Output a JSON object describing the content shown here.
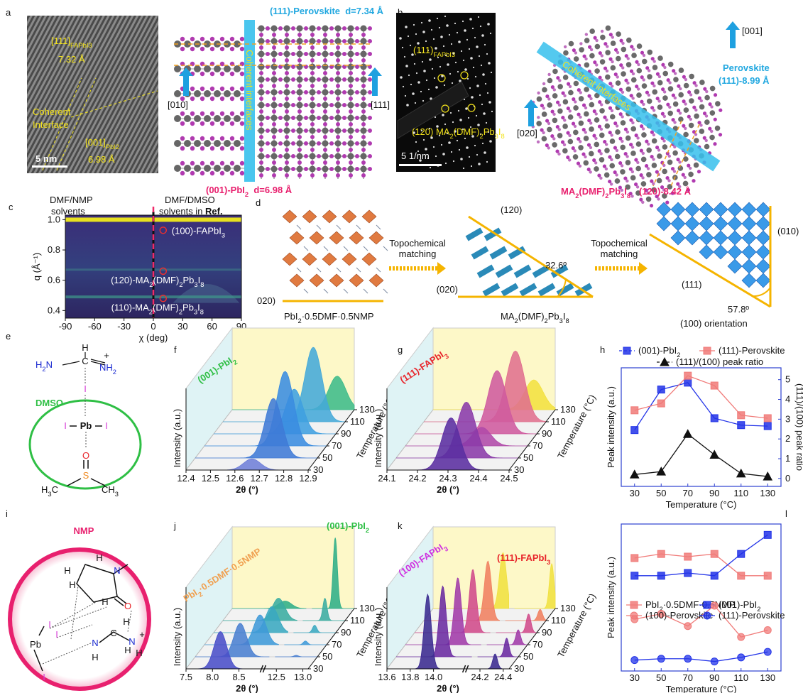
{
  "panel_a": {
    "letter": "a",
    "hrtem_top": [
      "[111]",
      "FAPbI3"
    ],
    "hrtem_top_d": "7.32 Å",
    "hrtem_interface_1": "Coherent",
    "hrtem_interface_2": "Interface",
    "hrtem_bottom": [
      "[001]",
      "PbI2"
    ],
    "hrtem_bottom_d": "6.98 Å",
    "hrtem_scale": "5 nm",
    "model_top": "(111)-Perovskite  d=7.34 Å",
    "model_left_axis": "[010]",
    "model_right_axis": "[111]",
    "model_band": "Coherent interfaces",
    "model_bottom": [
      "(001)-PbI",
      "2",
      "  d=6.98 Å"
    ]
  },
  "panel_b": {
    "letter": "b",
    "saed_spot_1": [
      "(111)",
      "FAPbI3"
    ],
    "saed_spot_2": [
      "(120) MA",
      "2",
      "(DMF)",
      "2",
      "Pb",
      "3",
      "I",
      "8"
    ],
    "saed_scale": "5 1/nm",
    "model_up_axis": "[001]",
    "model_perovskite_1": "Perovskite",
    "model_perovskite_2": "(111)-8.99 Å",
    "model_left_axis": "[020]",
    "model_band": "Coherent interfaces",
    "model_phase": [
      "MA",
      "2",
      "(DMF)",
      "2",
      "Pb",
      "3",
      "I",
      "8"
    ],
    "model_plane": "(120)-8.42 Å"
  },
  "panel_d": {
    "letter": "d",
    "left_plane": "020)",
    "left_phase": [
      "PbI",
      "2",
      "·0.5DMF·0.5NMP"
    ],
    "arrow_1_line_1": "Topochemical",
    "arrow_1_line_2": "matching",
    "mid_top": "(120)",
    "mid_left": "(020)",
    "mid_angle": "32.6º",
    "mid_phase": [
      "MA",
      "2",
      "(DMF)",
      "2",
      "Pb",
      "3",
      "I",
      "8"
    ],
    "arrow_2_line_1": "Topochemical",
    "arrow_2_line_2": "matching",
    "right_side": "(010)",
    "right_hyp": "(111)",
    "right_angle": "57.8º",
    "right_phase": "(100) orientation"
  },
  "panel_e": {
    "letter": "e",
    "atoms": [
      "H",
      "C",
      [
        "H",
        "2",
        "N"
      ],
      "+",
      [
        "NH",
        "2"
      ],
      "I",
      "DMSO",
      "I",
      "Pb",
      "I",
      "O",
      "S",
      [
        "H",
        "3",
        "C"
      ],
      [
        "CH",
        "3"
      ]
    ]
  },
  "panel_i": {
    "letter": "i",
    "atoms": [
      "NMP",
      "H",
      "N",
      "H",
      "H",
      "H",
      "O",
      "I",
      "I",
      "Pb",
      "I",
      "H",
      "N",
      "N",
      "H",
      "H",
      "+",
      "C",
      "H"
    ]
  },
  "chart_data": [
    {
      "letter": "c",
      "type": "heatmap",
      "header_left_1": "DMF/NMP",
      "header_left_2": "solvents",
      "header_right_1": "DMF/DMSO",
      "header_right_2": "solvents in ",
      "header_right_ref": "Ref.",
      "xlabel": "χ (deg)",
      "ylabel": "q (Å⁻¹)",
      "xlim": [
        -90,
        90
      ],
      "ylim": [
        0.35,
        1.03
      ],
      "xticks": [
        -90,
        -60,
        -30,
        0,
        30,
        60,
        90
      ],
      "yticks": [
        0.4,
        0.6,
        0.8,
        {
          "value": 1,
          "label": "1.0"
        }
      ],
      "annotations": [
        {
          "text": [
            "(100)-FAPbI",
            "3"
          ],
          "x": 10,
          "y": 0.93
        },
        {
          "text": [
            "(120)-MA",
            "2",
            "(DMF)",
            "2",
            "Pb",
            "3",
            "I",
            "8"
          ],
          "x": 10,
          "y": 0.66
        },
        {
          "text": [
            "(110)-MA",
            "2",
            "(DMF)",
            "2",
            "Pb",
            "3",
            "I",
            "8"
          ],
          "x": 10,
          "y": 0.48
        }
      ]
    },
    {
      "letter": "f",
      "type": "ridgeline",
      "annotations": [
        {
          "text": [
            "(001)-PbI",
            "2"
          ],
          "color": "#2fbf45"
        }
      ],
      "ylabel": "Intensity (a.u.)",
      "xlabel": "2θ (°)",
      "zlabel": "Temperature (°C)",
      "xlim": [
        12.4,
        12.9
      ],
      "xticks": [
        12.4,
        12.5,
        12.6,
        12.7,
        12.8,
        12.9
      ],
      "temperatures": [
        30,
        50,
        70,
        90,
        110,
        130
      ],
      "series": [
        {
          "centers": [
            12.67,
            12.72,
            12.73,
            12.73,
            12.77,
            12.83
          ],
          "heights": [
            0.15,
            0.8,
            1.0,
            0.6,
            1.0,
            0.45
          ],
          "colors": [
            "#6f7fd8",
            "#3f7ad6",
            "#3a8ce0",
            "#3f9fe0",
            "#44a8d8",
            "#3dbb8a"
          ]
        }
      ]
    },
    {
      "letter": "g",
      "type": "ridgeline",
      "annotations": [
        {
          "text": [
            "(111)-FAPbI",
            "3"
          ],
          "color": "#e8242a"
        }
      ],
      "ylabel": "Intensity (a.u.)",
      "xlabel": "2θ (°)",
      "zlabel": "Temperature (°C)",
      "xlim": [
        24.1,
        24.5
      ],
      "xticks": [
        24.1,
        24.2,
        24.3,
        24.4,
        24.5
      ],
      "temperatures": [
        30,
        50,
        70,
        90,
        110,
        130
      ],
      "series": [
        {
          "centers": [
            24.31,
            24.33,
            24.35,
            24.37,
            24.4,
            24.43
          ],
          "heights": [
            0.7,
            0.75,
            0.25,
            0.85,
            0.95,
            0.4
          ],
          "colors": [
            "#5a2ea0",
            "#8a3aa8",
            "#b04aa8",
            "#cf5a9e",
            "#e0708e",
            "#f2e040"
          ]
        }
      ]
    },
    {
      "letter": "h",
      "type": "line",
      "xlabel": "Temperature (°C)",
      "ylabel": "Peak intensity (a.u.)",
      "y2label": "(111)/(100) peak ratio",
      "x": [
        30,
        50,
        70,
        90,
        110,
        130
      ],
      "xlim": [
        20,
        140
      ],
      "xticks": [
        30,
        50,
        70,
        90,
        110,
        130
      ],
      "ylim": [
        -0.4,
        5.6
      ],
      "y2lim": [
        -0.4,
        5.6
      ],
      "y2ticks": [
        0,
        1,
        2,
        3,
        4,
        5
      ],
      "axis_color": "#2c3fd0",
      "series": [
        {
          "name": [
            "(001)-PbI",
            "2"
          ],
          "color": "#2233e8",
          "marker": "square",
          "dash": true,
          "values": [
            2.45,
            4.5,
            4.85,
            3.05,
            2.7,
            2.65
          ]
        },
        {
          "name": "(111)-Perovskite",
          "color": "#f07a78",
          "marker": "square",
          "dash": false,
          "values": [
            3.45,
            3.8,
            5.2,
            4.7,
            3.2,
            3.05
          ]
        },
        {
          "name": "(111)/(100) peak ratio",
          "color": "#111111",
          "marker": "triangle",
          "dash": true,
          "axis": "y2",
          "values": [
            0.2,
            0.35,
            2.25,
            1.2,
            0.25,
            0.1
          ]
        }
      ]
    },
    {
      "letter": "j",
      "type": "ridgeline",
      "annotations": [
        {
          "text": [
            "PbI",
            "2",
            "·0.5DMF·0.5NMP"
          ],
          "color": "#f0a050"
        },
        {
          "text": [
            "(001)-PbI",
            "2"
          ],
          "color": "#2fbf45"
        }
      ],
      "ylabel": "Intensity (a.u.)",
      "xlabel": "2θ (°)",
      "zlabel": "Temperature (°C)",
      "xlim": [
        [
          7.5,
          8.9
        ],
        [
          12.3,
          13.1
        ]
      ],
      "xticks": [
        7.5,
        {
          "value": 8,
          "label": "8.0"
        },
        8.5,
        12.5,
        {
          "value": 13,
          "label": "13.0"
        }
      ],
      "temperatures": [
        30,
        50,
        70,
        90,
        110,
        130
      ],
      "series": [
        {
          "centers": [
            8.15,
            8.35,
            8.55,
            8.6,
            8.55,
            8.5
          ],
          "heights": [
            0.5,
            0.45,
            0.4,
            0.35,
            0.3,
            0.1
          ],
          "colors": [
            "#4a4fc8",
            "#4a7fd0",
            "#3f9ad8",
            "#3aa8c0",
            "#3aaca0",
            "#2fae88"
          ]
        },
        {
          "centers": [
            12.7,
            12.7,
            12.7,
            12.7,
            12.72,
            12.74
          ],
          "heights": [
            0.0,
            0.02,
            0.05,
            0.1,
            0.3,
            0.95
          ],
          "colors": [
            "#4a4fc8",
            "#4a7fd0",
            "#3f9ad8",
            "#3aa8c0",
            "#3aaca0",
            "#2fae88"
          ]
        }
      ]
    },
    {
      "letter": "k",
      "type": "ridgeline",
      "annotations": [
        {
          "text": [
            "(100)-FAPbI",
            "3"
          ],
          "color": "#d030e0"
        },
        {
          "text": [
            "(111)-FAPbI",
            "3"
          ],
          "color": "#e8242a"
        }
      ],
      "ylabel": "Intensity (a.u.)",
      "xlabel": "2θ (°)",
      "zlabel": "Temperature (°C)",
      "xlim": [
        [
          13.6,
          14.25
        ],
        [
          24.1,
          24.45
        ]
      ],
      "xticks": [
        13.6,
        13.8,
        {
          "value": 14,
          "label": "14.0"
        },
        24.2,
        24.4
      ],
      "temperatures": [
        30,
        50,
        70,
        90,
        110,
        130
      ],
      "series": [
        {
          "centers": [
            13.95,
            14.0,
            14.05,
            14.1,
            14.15,
            14.2
          ],
          "heights": [
            1.0,
            0.95,
            0.9,
            0.85,
            0.8,
            0.75
          ],
          "colors": [
            "#3a2a90",
            "#6a2aa0",
            "#a03aa8",
            "#d04a8a",
            "#f08060",
            "#f0e040"
          ]
        },
        {
          "centers": [
            24.33,
            24.35,
            24.37,
            24.38,
            24.4,
            24.42
          ],
          "heights": [
            0.2,
            0.25,
            0.2,
            0.25,
            0.15,
            0.6
          ],
          "colors": [
            "#3a2a90",
            "#6a2aa0",
            "#a03aa8",
            "#d04a8a",
            "#f08060",
            "#f0e040"
          ]
        }
      ]
    },
    {
      "letter": "l",
      "type": "line",
      "xlabel": "Temperature (°C)",
      "ylabel": "Peak intensity (a.u.)",
      "x": [
        30,
        50,
        70,
        90,
        110,
        130
      ],
      "xlim": [
        20,
        140
      ],
      "xticks": [
        30,
        50,
        70,
        90,
        110,
        130
      ],
      "ylim": [
        0,
        1.08
      ],
      "axis_color": "#2c3fd0",
      "series": [
        {
          "name": [
            "PbI",
            "2",
            "·0.5DMF·0.5NMP"
          ],
          "color": "#f07a78",
          "marker": "square",
          "dash": false,
          "values": [
            0.83,
            0.86,
            0.84,
            0.86,
            0.7,
            0.7
          ]
        },
        {
          "name": [
            "(001)-PbI",
            "2"
          ],
          "color": "#2233e8",
          "marker": "square",
          "dash": false,
          "values": [
            0.7,
            0.7,
            0.72,
            0.7,
            0.86,
            1.0
          ]
        },
        {
          "name": "(100)-Perovskite",
          "color": "#f07a78",
          "marker": "circle",
          "dash": false,
          "values": [
            0.38,
            0.42,
            0.33,
            0.48,
            0.25,
            0.3
          ]
        },
        {
          "name": "(111)-Perovskite",
          "color": "#2233e8",
          "marker": "circle",
          "dash": false,
          "values": [
            0.08,
            0.09,
            0.09,
            0.07,
            0.1,
            0.14
          ]
        }
      ]
    }
  ]
}
